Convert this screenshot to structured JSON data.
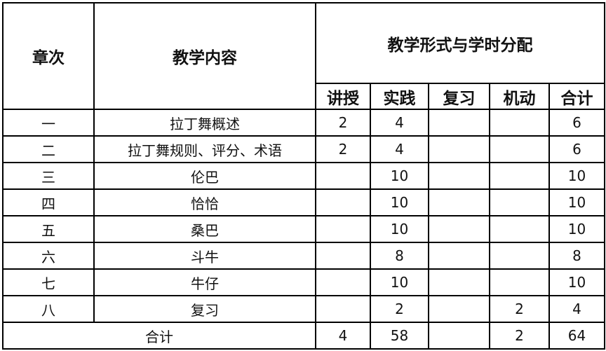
{
  "headers": {
    "chapter": "章次",
    "content": "教学内容",
    "form": "教学形式与学时分配",
    "sub": [
      "讲授",
      "实践",
      "复习",
      "机动",
      "合计"
    ]
  },
  "rows": [
    {
      "chapter": "一",
      "content": "拉丁舞概述",
      "lecture": "2",
      "practice": "4",
      "review": "",
      "flex": "",
      "total": "6"
    },
    {
      "chapter": "二",
      "content": "拉丁舞规则、评分、术语",
      "lecture": "2",
      "practice": "4",
      "review": "",
      "flex": "",
      "total": "6"
    },
    {
      "chapter": "三",
      "content": "伦巴",
      "lecture": "",
      "practice": "10",
      "review": "",
      "flex": "",
      "total": "10"
    },
    {
      "chapter": "四",
      "content": "恰恰",
      "lecture": "",
      "practice": "10",
      "review": "",
      "flex": "",
      "total": "10"
    },
    {
      "chapter": "五",
      "content": "桑巴",
      "lecture": "",
      "practice": "10",
      "review": "",
      "flex": "",
      "total": "10"
    },
    {
      "chapter": "六",
      "content": "斗牛",
      "lecture": "",
      "practice": "8",
      "review": "",
      "flex": "",
      "total": "8"
    },
    {
      "chapter": "七",
      "content": "牛仔",
      "lecture": "",
      "practice": "10",
      "review": "",
      "flex": "",
      "total": "10"
    },
    {
      "chapter": "八",
      "content": "复习",
      "lecture": "",
      "practice": "2",
      "review": "",
      "flex": "2",
      "total": "4"
    }
  ],
  "summary": {
    "label": "合计",
    "lecture": "4",
    "practice": "58",
    "review": "",
    "flex": "2",
    "total": "64"
  }
}
